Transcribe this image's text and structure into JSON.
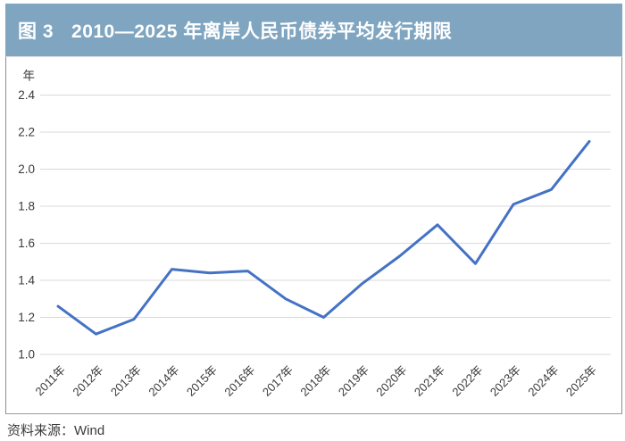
{
  "figure_label": "图 3",
  "title": "2010—2025 年离岸人民币债券平均发行期限",
  "source": "资料来源：Wind",
  "colors": {
    "banner": "#7fa5c0",
    "title_text": "#ffffff",
    "line": "#4472c4",
    "grid": "#d9d9d9",
    "tick_text": "#3a3a3a",
    "box_border": "#8e8e8e"
  },
  "chart_data": {
    "type": "line",
    "title": "2010—2025 年离岸人民币债券平均发行期限",
    "ylabel": "年",
    "xlabel": "",
    "categories": [
      "2011年",
      "2012年",
      "2013年",
      "2014年",
      "2015年",
      "2016年",
      "2017年",
      "2018年",
      "2019年",
      "2020年",
      "2021年",
      "2022年",
      "2023年",
      "2024年",
      "2025年"
    ],
    "values": [
      1.26,
      1.11,
      1.19,
      1.46,
      1.44,
      1.45,
      1.3,
      1.2,
      1.38,
      1.53,
      1.7,
      1.49,
      1.81,
      1.89,
      2.15
    ],
    "ylim": [
      1.0,
      2.4
    ],
    "yticks": [
      1.0,
      1.2,
      1.4,
      1.6,
      1.8,
      2.0,
      2.2,
      2.4
    ],
    "ytick_format": "one-decimal",
    "grid": "horizontal",
    "legend": "none",
    "x_label_rotation_deg": -45
  }
}
